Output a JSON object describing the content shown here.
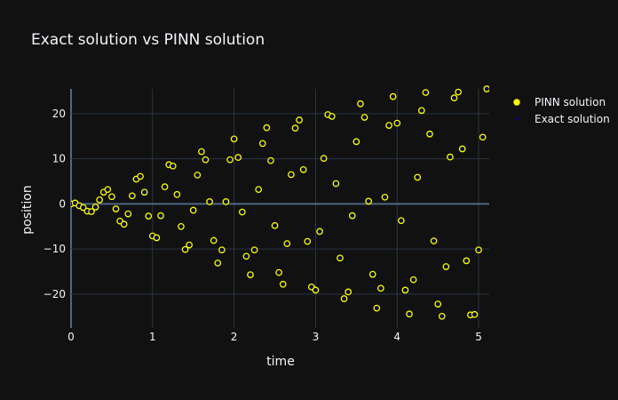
{
  "colors": {
    "background": "#111111",
    "grid": "#283442",
    "zeroline": "#506784",
    "text": "#f2f5fa",
    "pinn": "#ffff00",
    "exact": "#00008b"
  },
  "chart_data": {
    "type": "scatter",
    "title": "Exact solution vs PINN solution",
    "xlabel": "time",
    "ylabel": "position",
    "xlim": [
      0,
      5.13
    ],
    "ylim": [
      -27.5,
      25.5
    ],
    "xticks": [
      0,
      1,
      2,
      3,
      4,
      5
    ],
    "yticks": [
      -20,
      -10,
      0,
      10,
      20
    ],
    "grid": true,
    "legend_position": "top-right",
    "series": [
      {
        "name": "PINN solution",
        "marker": "open-circle",
        "x": [
          0.0,
          0.05,
          0.1,
          0.15,
          0.2,
          0.25,
          0.3,
          0.35,
          0.4,
          0.45,
          0.5,
          0.55,
          0.6,
          0.65,
          0.7,
          0.75,
          0.8,
          0.85,
          0.9,
          0.95,
          1.0,
          1.05,
          1.1,
          1.15,
          1.2,
          1.25,
          1.3,
          1.35,
          1.4,
          1.45,
          1.5,
          1.55,
          1.6,
          1.65,
          1.7,
          1.75,
          1.8,
          1.85,
          1.9,
          1.95,
          2.0,
          2.05,
          2.1,
          2.15,
          2.2,
          2.25,
          2.3,
          2.35,
          2.4,
          2.45,
          2.5,
          2.55,
          2.6,
          2.65,
          2.7,
          2.75,
          2.8,
          2.85,
          2.9,
          2.95,
          3.0,
          3.05,
          3.1,
          3.15,
          3.2,
          3.25,
          3.3,
          3.35,
          3.4,
          3.45,
          3.5,
          3.55,
          3.6,
          3.65,
          3.7,
          3.75,
          3.8,
          3.85,
          3.9,
          3.95,
          4.0,
          4.05,
          4.1,
          4.15,
          4.2,
          4.25,
          4.3,
          4.35,
          4.4,
          4.45,
          4.5,
          4.55,
          4.6,
          4.65,
          4.7,
          4.75,
          4.8,
          4.85,
          4.9,
          4.95,
          5.0,
          5.05,
          5.1
        ],
        "y": [
          0.0,
          0.2,
          -0.4,
          -0.8,
          -1.6,
          -1.7,
          -0.7,
          0.9,
          2.6,
          3.2,
          1.6,
          -1.1,
          -3.8,
          -4.5,
          -2.2,
          1.8,
          5.5,
          6.1,
          2.6,
          -2.7,
          -7.1,
          -7.5,
          -2.6,
          3.8,
          8.7,
          8.4,
          2.1,
          -5.0,
          -10.1,
          -9.1,
          -1.4,
          6.4,
          11.6,
          9.8,
          0.5,
          -8.1,
          -13.1,
          -10.2,
          0.5,
          9.8,
          14.4,
          10.3,
          -1.8,
          -11.6,
          -15.7,
          -10.2,
          3.2,
          13.4,
          16.9,
          9.6,
          -4.8,
          -15.2,
          -17.8,
          -8.8,
          6.5,
          16.8,
          18.6,
          7.6,
          -8.3,
          -18.4,
          -19.1,
          -6.1,
          10.1,
          19.8,
          19.4,
          4.5,
          -12.0,
          -21.0,
          -19.5,
          -2.6,
          13.8,
          22.2,
          19.2,
          0.6,
          -15.6,
          -23.1,
          -18.7,
          1.5,
          17.4,
          23.8,
          17.9,
          -3.7,
          -19.1,
          -24.4,
          -16.8,
          5.9,
          20.7,
          24.7,
          15.5,
          -8.2,
          -22.2,
          -24.9,
          -13.9,
          10.4,
          23.5,
          24.8,
          12.2,
          -12.6,
          -24.6,
          -24.5,
          -10.2,
          14.8,
          25.5
        ]
      },
      {
        "name": "Exact solution",
        "marker": "filled-dot",
        "x": [
          0.0,
          0.05,
          0.1,
          0.15,
          0.2,
          0.25,
          0.3,
          0.35,
          0.4,
          0.45,
          0.5,
          0.55,
          0.6,
          0.65,
          0.7,
          0.75,
          0.8,
          0.85,
          0.9,
          0.95,
          1.0,
          1.05,
          1.1,
          1.15,
          1.2,
          1.25,
          1.3,
          1.35,
          1.4,
          1.45,
          1.5,
          1.55,
          1.6,
          1.65,
          1.7,
          1.75,
          1.8,
          1.85,
          1.9,
          1.95,
          2.0,
          2.05,
          2.1,
          2.15,
          2.2,
          2.25,
          2.3,
          2.35,
          2.4,
          2.45,
          2.5,
          2.55,
          2.6,
          2.65,
          2.7,
          2.75,
          2.8,
          2.85,
          2.9,
          2.95,
          3.0,
          3.05,
          3.1,
          3.15,
          3.2,
          3.25,
          3.3,
          3.35,
          3.4,
          3.45,
          3.5,
          3.55,
          3.6,
          3.65,
          3.7,
          3.75,
          3.8,
          3.85,
          3.9,
          3.95,
          4.0,
          4.05,
          4.1,
          4.15,
          4.2,
          4.25,
          4.3,
          4.35,
          4.4,
          4.45,
          4.5,
          4.55,
          4.6,
          4.65,
          4.7,
          4.75,
          4.8,
          4.85,
          4.9,
          4.95,
          5.0,
          5.05,
          5.1
        ],
        "y": [
          0.0,
          0.2,
          -0.4,
          -0.8,
          -1.6,
          -1.7,
          -0.7,
          0.9,
          2.6,
          3.2,
          1.6,
          -1.1,
          -3.8,
          -4.5,
          -2.2,
          1.8,
          5.5,
          6.1,
          2.6,
          -2.7,
          -7.1,
          -7.5,
          -2.6,
          3.8,
          8.7,
          8.4,
          2.1,
          -5.0,
          -10.1,
          -9.1,
          -1.4,
          6.4,
          11.6,
          9.8,
          0.5,
          -8.1,
          -13.1,
          -10.2,
          0.5,
          9.8,
          14.4,
          10.3,
          -1.8,
          -11.6,
          -15.7,
          -10.2,
          3.2,
          13.4,
          16.9,
          9.6,
          -4.8,
          -15.2,
          -17.8,
          -8.8,
          6.5,
          16.8,
          18.6,
          7.6,
          -8.3,
          -18.4,
          -19.1,
          -6.1,
          10.1,
          19.8,
          19.4,
          4.5,
          -12.0,
          -21.0,
          -19.5,
          -2.6,
          13.8,
          22.2,
          19.2,
          0.6,
          -15.6,
          -23.1,
          -18.7,
          1.5,
          17.4,
          23.8,
          17.9,
          -3.7,
          -19.1,
          -24.4,
          -16.8,
          5.9,
          20.7,
          24.7,
          15.5,
          -8.2,
          -22.2,
          -24.9,
          -13.9,
          10.4,
          23.5,
          24.8,
          12.2,
          -12.6,
          -24.6,
          -24.5,
          -10.2,
          14.8,
          25.5
        ]
      }
    ]
  }
}
